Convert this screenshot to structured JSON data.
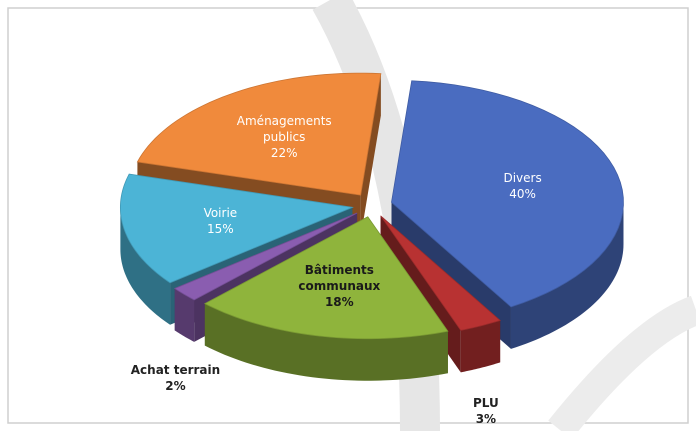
{
  "chart_data": {
    "type": "pie3d",
    "categories": [
      "Divers",
      "PLU",
      "Bâtiments communaux",
      "Achat terrain",
      "Voirie",
      "Aménagements publics"
    ],
    "values": [
      40,
      3,
      18,
      2,
      15,
      22
    ],
    "value_labels": [
      "40%",
      "3%",
      "18%",
      "2%",
      "15%",
      "22%"
    ],
    "colors": [
      "#4a6cc0",
      "#b83232",
      "#8fb43c",
      "#8a5db0",
      "#4cb4d6",
      "#f08a3c"
    ]
  }
}
